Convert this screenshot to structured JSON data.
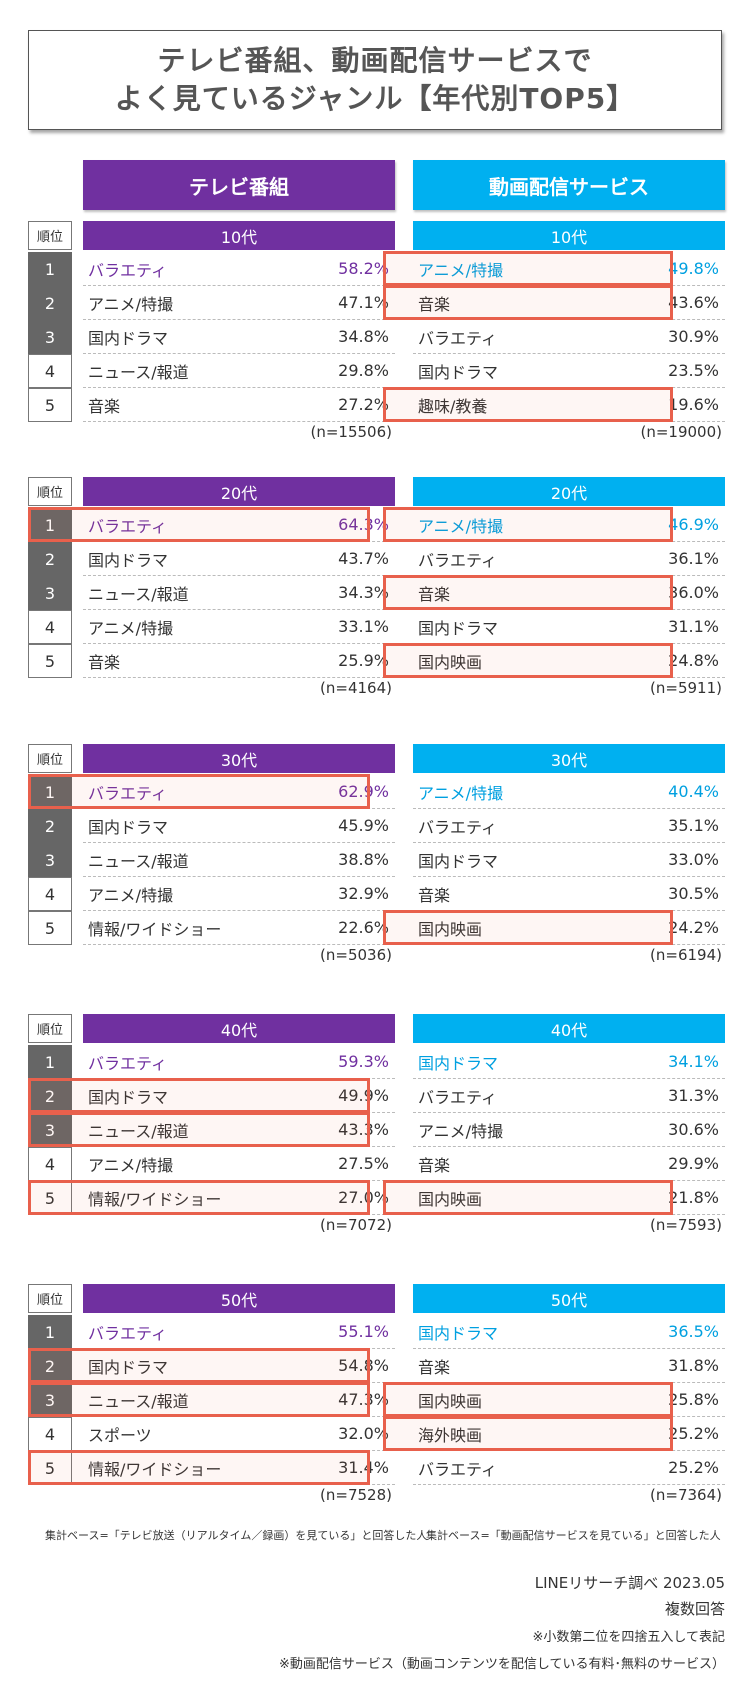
{
  "title": {
    "line1": "テレビ番組、動画配信サービスで",
    "line2": "よく見ているジャンル【年代別TOP5】"
  },
  "columns": {
    "tv": "テレビ番組",
    "vod": "動画配信サービス"
  },
  "rank_label": "順位",
  "colors": {
    "tv": "#7030a0",
    "vod": "#00b0f0",
    "highlight": "#e8604c",
    "rank_dark": "#666666"
  },
  "chart_data": [
    {
      "type": "table",
      "age": "10代",
      "ranks": [
        "1",
        "2",
        "3",
        "4",
        "5"
      ],
      "dark_ranks": [
        true,
        true,
        true,
        false,
        false
      ],
      "tv": {
        "rows": [
          {
            "genre": "バラエティ",
            "value": "58.2%"
          },
          {
            "genre": "アニメ/特撮",
            "value": "47.1%"
          },
          {
            "genre": "国内ドラマ",
            "value": "34.8%"
          },
          {
            "genre": "ニュース/報道",
            "value": "29.8%"
          },
          {
            "genre": "音楽",
            "value": "27.2%"
          }
        ],
        "n": "(n=15506)",
        "highlight": [
          false,
          false,
          false,
          false,
          false
        ]
      },
      "vod": {
        "rows": [
          {
            "genre": "アニメ/特撮",
            "value": "49.8%"
          },
          {
            "genre": "音楽",
            "value": "43.6%"
          },
          {
            "genre": "バラエティ",
            "value": "30.9%"
          },
          {
            "genre": "国内ドラマ",
            "value": "23.5%"
          },
          {
            "genre": "趣味/教養",
            "value": "19.6%"
          }
        ],
        "n": "(n=19000)",
        "highlight": [
          true,
          true,
          false,
          false,
          true
        ]
      }
    },
    {
      "type": "table",
      "age": "20代",
      "ranks": [
        "1",
        "2",
        "3",
        "4",
        "5"
      ],
      "dark_ranks": [
        true,
        true,
        true,
        false,
        false
      ],
      "tv": {
        "rows": [
          {
            "genre": "バラエティ",
            "value": "64.3%"
          },
          {
            "genre": "国内ドラマ",
            "value": "43.7%"
          },
          {
            "genre": "ニュース/報道",
            "value": "34.3%"
          },
          {
            "genre": "アニメ/特撮",
            "value": "33.1%"
          },
          {
            "genre": "音楽",
            "value": "25.9%"
          }
        ],
        "n": "(n=4164)",
        "highlight": [
          true,
          false,
          false,
          false,
          false
        ]
      },
      "vod": {
        "rows": [
          {
            "genre": "アニメ/特撮",
            "value": "46.9%"
          },
          {
            "genre": "バラエティ",
            "value": "36.1%"
          },
          {
            "genre": "音楽",
            "value": "36.0%"
          },
          {
            "genre": "国内ドラマ",
            "value": "31.1%"
          },
          {
            "genre": "国内映画",
            "value": "24.8%"
          }
        ],
        "n": "(n=5911)",
        "highlight": [
          true,
          false,
          true,
          false,
          true
        ]
      }
    },
    {
      "type": "table",
      "age": "30代",
      "ranks": [
        "1",
        "2",
        "3",
        "4",
        "5"
      ],
      "dark_ranks": [
        true,
        true,
        true,
        false,
        false
      ],
      "tv": {
        "rows": [
          {
            "genre": "バラエティ",
            "value": "62.9%"
          },
          {
            "genre": "国内ドラマ",
            "value": "45.9%"
          },
          {
            "genre": "ニュース/報道",
            "value": "38.8%"
          },
          {
            "genre": "アニメ/特撮",
            "value": "32.9%"
          },
          {
            "genre": "情報/ワイドショー",
            "value": "22.6%"
          }
        ],
        "n": "(n=5036)",
        "highlight": [
          true,
          false,
          false,
          false,
          false
        ]
      },
      "vod": {
        "rows": [
          {
            "genre": "アニメ/特撮",
            "value": "40.4%"
          },
          {
            "genre": "バラエティ",
            "value": "35.1%"
          },
          {
            "genre": "国内ドラマ",
            "value": "33.0%"
          },
          {
            "genre": "音楽",
            "value": "30.5%"
          },
          {
            "genre": "国内映画",
            "value": "24.2%"
          }
        ],
        "n": "(n=6194)",
        "highlight": [
          false,
          false,
          false,
          false,
          true
        ]
      }
    },
    {
      "type": "table",
      "age": "40代",
      "ranks": [
        "1",
        "2",
        "3",
        "4",
        "5"
      ],
      "dark_ranks": [
        true,
        true,
        true,
        false,
        false
      ],
      "tv": {
        "rows": [
          {
            "genre": "バラエティ",
            "value": "59.3%"
          },
          {
            "genre": "国内ドラマ",
            "value": "49.9%"
          },
          {
            "genre": "ニュース/報道",
            "value": "43.3%"
          },
          {
            "genre": "アニメ/特撮",
            "value": "27.5%"
          },
          {
            "genre": "情報/ワイドショー",
            "value": "27.0%"
          }
        ],
        "n": "(n=7072)",
        "highlight": [
          false,
          true,
          true,
          false,
          true
        ]
      },
      "vod": {
        "rows": [
          {
            "genre": "国内ドラマ",
            "value": "34.1%"
          },
          {
            "genre": "バラエティ",
            "value": "31.3%"
          },
          {
            "genre": "アニメ/特撮",
            "value": "30.6%"
          },
          {
            "genre": "音楽",
            "value": "29.9%"
          },
          {
            "genre": "国内映画",
            "value": "21.8%"
          }
        ],
        "n": "(n=7593)",
        "highlight": [
          false,
          false,
          false,
          false,
          true
        ]
      }
    },
    {
      "type": "table",
      "age": "50代",
      "ranks": [
        "1",
        "2",
        "3",
        "4",
        "5"
      ],
      "dark_ranks": [
        true,
        true,
        true,
        false,
        false
      ],
      "tv": {
        "rows": [
          {
            "genre": "バラエティ",
            "value": "55.1%"
          },
          {
            "genre": "国内ドラマ",
            "value": "54.8%"
          },
          {
            "genre": "ニュース/報道",
            "value": "47.3%"
          },
          {
            "genre": "スポーツ",
            "value": "32.0%"
          },
          {
            "genre": "情報/ワイドショー",
            "value": "31.4%"
          }
        ],
        "n": "(n=7528)",
        "highlight": [
          false,
          true,
          true,
          false,
          true
        ]
      },
      "vod": {
        "rows": [
          {
            "genre": "国内ドラマ",
            "value": "36.5%"
          },
          {
            "genre": "音楽",
            "value": "31.8%"
          },
          {
            "genre": "国内映画",
            "value": "25.8%"
          },
          {
            "genre": "海外映画",
            "value": "25.2%"
          },
          {
            "genre": "バラエティ",
            "value": "25.2%"
          }
        ],
        "n": "(n=7364)",
        "highlight": [
          false,
          false,
          true,
          true,
          false
        ]
      }
    }
  ],
  "notes": {
    "tv_base": "集計ベース=「テレビ放送（リアルタイム／録画）を見ている」と回答した人",
    "vod_base": "集計ベース=「動画配信サービスを見ている」と回答した人"
  },
  "credits": {
    "source": "LINEリサーチ調べ 2023.05",
    "multi": "複数回答",
    "rounding": "※小数第二位を四捨五入して表記",
    "vod_def": "※動画配信サービス（動画コンテンツを配信している有料･無料のサービス）"
  }
}
